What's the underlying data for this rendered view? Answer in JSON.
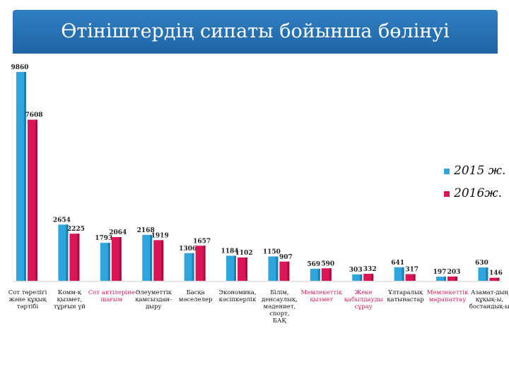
{
  "chart_data": {
    "type": "bar",
    "title": "Өтініштердің сипаты бойынша бөлінуі",
    "ylim": [
      0,
      9860
    ],
    "grid": false,
    "legend_position": "right",
    "categories": [
      "Сот төрелігі\nжәне құқық\nтәртібі",
      "Комм-қ\nқызмет,\nтұрғын үй",
      "Сот актілеріне\nшағым",
      "Әлеуметтік\nқамсыздан-\nдыру",
      "Басқа\nмәселелер",
      "Экономика,\nкәсіпкерлік",
      "Білім,\nденсаулық,\nмәдениет, спорт,\nБАҚ",
      "Мемлекеттік\nқызмет",
      "Жеке\nқабылдауды\nсұрау",
      "Ұлтаралық\nқатынастар",
      "Мемлекеттік\nмарапаттау",
      "Азамат-дың\nқұқық-ы,\nбостандық-ы"
    ],
    "series": [
      {
        "name": "2015 ж.",
        "color": "#2ea6dd",
        "values": [
          9860,
          2654,
          1793,
          2168,
          1306,
          1184,
          1150,
          569,
          303,
          641,
          197,
          630
        ]
      },
      {
        "name": "2016ж.",
        "color": "#dd1557",
        "values": [
          7608,
          2225,
          2064,
          1919,
          1657,
          1102,
          907,
          590,
          332,
          317,
          203,
          146
        ]
      }
    ],
    "category_colors": [
      "#111111",
      "#111111",
      "#d81b52",
      "#111111",
      "#111111",
      "#111111",
      "#111111",
      "#d81b52",
      "#d81b52",
      "#111111",
      "#d81b52",
      "#111111"
    ]
  }
}
